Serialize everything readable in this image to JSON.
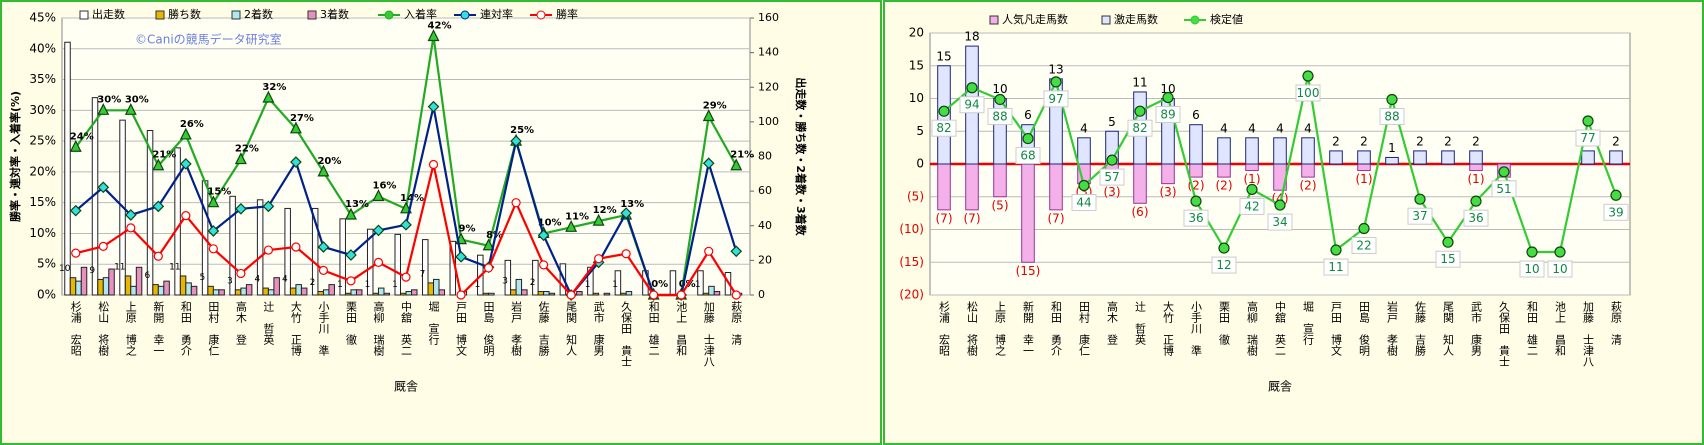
{
  "chart_data": [
    {
      "type": "bar",
      "bar_layout": "grouped",
      "annotation": "©Caniの競馬データ研究室",
      "x_label": "厩舎",
      "y_label": "勝率・連対率・入着率(%)",
      "y2_label": "出走数・勝ち数・2着数・3着数",
      "categories": [
        "杉浦　宏昭",
        "松山　将樹",
        "上原　博之",
        "新開　幸一",
        "和田　勇介",
        "田村　康仁",
        "高木　登",
        "辻　哲英",
        "大竹　正博",
        "小手川　準",
        "栗田　徹",
        "高柳　瑞樹",
        "中舘　英二",
        "堀　宣行",
        "戸田　博文",
        "田島　俊明",
        "岩戸　孝樹",
        "佐藤　吉勝",
        "尾関　知人",
        "武市　康男",
        "久保田　貴士",
        "和田　雄二",
        "池上　昌和",
        "加藤　士津八",
        "萩原　清"
      ],
      "ylim": [
        0,
        45
      ],
      "yticks": [
        {
          "value": 0,
          "label": "0%"
        },
        {
          "value": 5,
          "label": "5%"
        },
        {
          "value": 10,
          "label": "10%"
        },
        {
          "value": 15,
          "label": "15%"
        },
        {
          "value": 20,
          "label": "20%"
        },
        {
          "value": 25,
          "label": "25%"
        },
        {
          "value": 30,
          "label": "30%"
        },
        {
          "value": 35,
          "label": "35%"
        },
        {
          "value": 40,
          "label": "40%"
        },
        {
          "value": 45,
          "label": "45%"
        }
      ],
      "y2lim": [
        0,
        160
      ],
      "y2ticks": [
        0,
        20,
        40,
        60,
        80,
        100,
        120,
        140,
        160
      ],
      "grid": true,
      "series": [
        {
          "name": "出走数",
          "type": "bar",
          "axis": "y2",
          "color": "#ffffff",
          "values": [
            146,
            114,
            101,
            95,
            85,
            66,
            57,
            55,
            50,
            50,
            44,
            38,
            35,
            32,
            31,
            23,
            20,
            20,
            18,
            16,
            14,
            14,
            14,
            14,
            13
          ]
        },
        {
          "name": "勝ち数",
          "type": "bar",
          "axis": "y2",
          "color": "#e8b800",
          "data_labels": true,
          "values": [
            10,
            9,
            11,
            6,
            11,
            5,
            3,
            4,
            4,
            2,
            1,
            1,
            1,
            7,
            0,
            1,
            3,
            2,
            0,
            1,
            1,
            0,
            0,
            1,
            0
          ]
        },
        {
          "name": "2着数",
          "type": "bar",
          "axis": "y2",
          "color": "#b0e8f0",
          "values": [
            8,
            10,
            5,
            5,
            7,
            3,
            4,
            3,
            6,
            3,
            3,
            4,
            2,
            9,
            2,
            1,
            9,
            2,
            0,
            0,
            2,
            0,
            0,
            5,
            1
          ]
        },
        {
          "name": "3着数",
          "type": "bar",
          "axis": "y2",
          "color": "#e890c0",
          "values": [
            16,
            15,
            16,
            8,
            5,
            3,
            6,
            10,
            4,
            6,
            3,
            1,
            3,
            3,
            0,
            0,
            3,
            1,
            2,
            1,
            0,
            0,
            0,
            2,
            0
          ]
        },
        {
          "name": "入着率",
          "type": "line",
          "color": "#22aa22",
          "marker": "triangle",
          "marker_color": "#33cc33",
          "values": [
            24,
            30,
            30,
            21,
            26,
            15,
            22,
            32,
            27,
            20,
            13,
            16,
            14,
            42,
            9,
            8,
            25,
            10,
            11,
            12,
            13,
            0,
            0,
            29,
            21
          ],
          "value_labels": [
            "24%",
            "30%",
            "30%",
            "21%",
            "26%",
            "15%",
            "22%",
            "32%",
            "27%",
            "20%",
            "13%",
            "16%",
            "14%",
            "42%",
            "9%",
            "8%",
            "25%",
            "10%",
            "11%",
            "12%",
            "13%",
            "0%",
            "0%",
            "29%",
            "21%"
          ]
        },
        {
          "name": "連対率",
          "type": "line",
          "color": "#002288",
          "marker": "diamond",
          "marker_color": "#33e0e0",
          "values": [
            13.7,
            17.5,
            13,
            14.4,
            21.3,
            10.4,
            14,
            14.4,
            21.6,
            7.8,
            6.5,
            10.5,
            11.4,
            30.6,
            6.2,
            4.5,
            25,
            9.7,
            0,
            5.3,
            13.3,
            0,
            0,
            21.4,
            7.1
          ]
        },
        {
          "name": "勝率",
          "type": "line",
          "color": "#ff0000",
          "marker": "circle",
          "marker_color": "#ffffff",
          "values": [
            6.8,
            7.9,
            10.9,
            6.3,
            12.9,
            7.5,
            3.5,
            7.3,
            7.8,
            4,
            2.3,
            5.3,
            2.9,
            21.2,
            0,
            4.4,
            15,
            4.9,
            0,
            5.9,
            6.7,
            0,
            0,
            7.1,
            0
          ]
        }
      ]
    },
    {
      "type": "bar",
      "bar_layout": "overlay",
      "x_label": "厩舎",
      "categories": [
        "杉浦　宏昭",
        "松山　将樹",
        "上原　博之",
        "新開　幸一",
        "和田　勇介",
        "田村　康仁",
        "高木　登",
        "辻　哲英",
        "大竹　正博",
        "小手川　準",
        "栗田　徹",
        "高柳　瑞樹",
        "中舘　英二",
        "堀　宣行",
        "戸田　博文",
        "田島　俊明",
        "岩戸　孝樹",
        "佐藤　吉勝",
        "尾関　知人",
        "武市　康男",
        "久保田　貴士",
        "和田　雄二",
        "池上　昌和",
        "加藤　士津八",
        "萩原　清"
      ],
      "ylim": [
        -20,
        20
      ],
      "yticks": [
        {
          "value": -20,
          "label": "(20)"
        },
        {
          "value": -15,
          "label": "(15)"
        },
        {
          "value": -10,
          "label": "(10)"
        },
        {
          "value": -5,
          "label": "(5)"
        },
        0,
        5,
        10,
        15,
        20
      ],
      "y2lim": [
        -12,
        122
      ],
      "grid": true,
      "series": [
        {
          "name": "人気凡走馬数",
          "type": "bar",
          "color": "#f4b0e8",
          "values": [
            -7,
            -7,
            -5,
            -15,
            -7,
            -3,
            -3,
            -6,
            -3,
            -2,
            -2,
            -1,
            -4,
            -2,
            0,
            -1,
            0,
            0,
            0,
            -1,
            -2,
            0,
            0,
            0,
            0
          ],
          "value_labels": [
            "(7)",
            "(7)",
            "(5)",
            "(15)",
            "(7)",
            "(3)",
            "(3)",
            "(6)",
            "(3)",
            "(2)",
            "(2)",
            "(1)",
            "(4)",
            "(2)",
            null,
            "(1)",
            null,
            null,
            null,
            "(1)",
            "(2)",
            null,
            null,
            null,
            null
          ]
        },
        {
          "name": "激走馬数",
          "type": "bar",
          "color": "#e0e6ff",
          "data_labels": true,
          "values": [
            15,
            18,
            10,
            6,
            13,
            4,
            5,
            11,
            10,
            6,
            4,
            4,
            4,
            4,
            2,
            2,
            1,
            2,
            2,
            2,
            0,
            0,
            0,
            2,
            2
          ]
        },
        {
          "name": "検定値",
          "type": "line",
          "axis": "y2",
          "color": "#33cc33",
          "marker": "circle",
          "marker_color": "#44dd44",
          "data_labels": true,
          "values": [
            82,
            94,
            88,
            68,
            97,
            44,
            57,
            82,
            89,
            36,
            12,
            42,
            34,
            100,
            11,
            22,
            88,
            37,
            15,
            36,
            51,
            10,
            10,
            77,
            39
          ]
        }
      ]
    }
  ]
}
